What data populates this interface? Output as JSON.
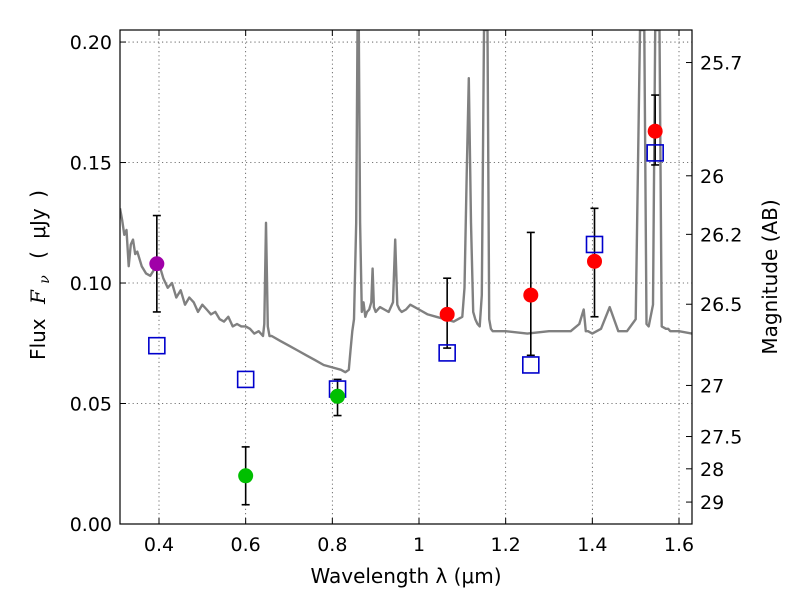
{
  "chart_data": {
    "type": "scatter",
    "xlabel": "Wavelength  λ (μm)",
    "ylabel_parts": [
      "Flux",
      "F",
      "ν",
      "(",
      "μJy",
      ")"
    ],
    "ylabel_right": "Magnitude (AB)",
    "xlim": [
      0.31,
      1.63
    ],
    "ylim": [
      0.0,
      0.205
    ],
    "x_ticks": [
      0.4,
      0.6,
      0.8,
      1.0,
      1.2,
      1.4,
      1.6
    ],
    "x_tick_labels": [
      "0.4",
      "0.6",
      "0.8",
      "1",
      "1.2",
      "1.4",
      "1.6"
    ],
    "y_ticks": [
      0.0,
      0.05,
      0.1,
      0.15,
      0.2
    ],
    "y_tick_labels": [
      "0.00",
      "0.05",
      "0.10",
      "0.15",
      "0.20"
    ],
    "right_ticks": [
      {
        "mag": "25.7",
        "flux": 0.1915
      },
      {
        "mag": "26",
        "flux": 0.1445
      },
      {
        "mag": "26.2",
        "flux": 0.1202
      },
      {
        "mag": "26.5",
        "flux": 0.0912
      },
      {
        "mag": "27",
        "flux": 0.0575
      },
      {
        "mag": "27.5",
        "flux": 0.0363
      },
      {
        "mag": "28",
        "flux": 0.0229
      },
      {
        "mag": "29",
        "flux": 0.0091
      }
    ],
    "grid": true,
    "observed_points": [
      {
        "x": 0.395,
        "y": 0.108,
        "yerr_low": 0.02,
        "yerr_high": 0.02,
        "color": "#a000a8"
      },
      {
        "x": 0.6,
        "y": 0.02,
        "yerr_low": 0.012,
        "yerr_high": 0.012,
        "color": "#00bf00"
      },
      {
        "x": 0.812,
        "y": 0.053,
        "yerr_low": 0.008,
        "yerr_high": 0.007,
        "color": "#00bf00"
      },
      {
        "x": 1.065,
        "y": 0.087,
        "yerr_low": 0.014,
        "yerr_high": 0.015,
        "color": "#ff0000"
      },
      {
        "x": 1.258,
        "y": 0.095,
        "yerr_low": 0.025,
        "yerr_high": 0.026,
        "color": "#ff0000"
      },
      {
        "x": 1.405,
        "y": 0.109,
        "yerr_low": 0.023,
        "yerr_high": 0.022,
        "color": "#ff0000"
      },
      {
        "x": 1.545,
        "y": 0.163,
        "yerr_low": 0.014,
        "yerr_high": 0.015,
        "color": "#ff0000"
      }
    ],
    "model_points": [
      {
        "x": 0.395,
        "y": 0.074
      },
      {
        "x": 0.6,
        "y": 0.06
      },
      {
        "x": 0.812,
        "y": 0.056
      },
      {
        "x": 1.065,
        "y": 0.071
      },
      {
        "x": 1.258,
        "y": 0.066
      },
      {
        "x": 1.405,
        "y": 0.116
      },
      {
        "x": 1.545,
        "y": 0.154
      }
    ],
    "model_color": "#0000cc",
    "spectrum": {
      "color": "#808080",
      "x": [
        0.31,
        0.315,
        0.32,
        0.325,
        0.33,
        0.335,
        0.34,
        0.345,
        0.35,
        0.36,
        0.37,
        0.38,
        0.39,
        0.4,
        0.41,
        0.42,
        0.43,
        0.44,
        0.45,
        0.46,
        0.47,
        0.48,
        0.49,
        0.5,
        0.51,
        0.52,
        0.53,
        0.54,
        0.55,
        0.56,
        0.57,
        0.58,
        0.59,
        0.6,
        0.61,
        0.62,
        0.63,
        0.64,
        0.643,
        0.647,
        0.651,
        0.655,
        0.66,
        0.68,
        0.7,
        0.72,
        0.74,
        0.76,
        0.78,
        0.8,
        0.82,
        0.83,
        0.838,
        0.842,
        0.846,
        0.85,
        0.855,
        0.858,
        0.861,
        0.864,
        0.868,
        0.872,
        0.876,
        0.88,
        0.885,
        0.89,
        0.893,
        0.896,
        0.9,
        0.91,
        0.92,
        0.93,
        0.94,
        0.945,
        0.95,
        0.955,
        0.96,
        0.97,
        0.98,
        1.0,
        1.02,
        1.04,
        1.06,
        1.08,
        1.09,
        1.1,
        1.105,
        1.11,
        1.115,
        1.12,
        1.125,
        1.13,
        1.135,
        1.14,
        1.145,
        1.15,
        1.152,
        1.155,
        1.158,
        1.162,
        1.166,
        1.17,
        1.2,
        1.25,
        1.3,
        1.35,
        1.37,
        1.38,
        1.385,
        1.39,
        1.4,
        1.42,
        1.44,
        1.46,
        1.48,
        1.5,
        1.51,
        1.52,
        1.525,
        1.53,
        1.54,
        1.545,
        1.55,
        1.555,
        1.56,
        1.57,
        1.575,
        1.58,
        1.6,
        1.63
      ],
      "y": [
        0.131,
        0.126,
        0.12,
        0.122,
        0.107,
        0.116,
        0.118,
        0.112,
        0.113,
        0.107,
        0.104,
        0.103,
        0.106,
        0.108,
        0.102,
        0.098,
        0.1,
        0.094,
        0.097,
        0.091,
        0.094,
        0.092,
        0.088,
        0.091,
        0.089,
        0.087,
        0.088,
        0.085,
        0.084,
        0.086,
        0.082,
        0.083,
        0.082,
        0.082,
        0.081,
        0.079,
        0.08,
        0.078,
        0.083,
        0.125,
        0.082,
        0.078,
        0.078,
        0.076,
        0.074,
        0.072,
        0.07,
        0.068,
        0.066,
        0.065,
        0.064,
        0.063,
        0.064,
        0.072,
        0.08,
        0.085,
        0.125,
        0.205,
        0.205,
        0.125,
        0.088,
        0.092,
        0.086,
        0.088,
        0.089,
        0.092,
        0.106,
        0.09,
        0.088,
        0.09,
        0.089,
        0.088,
        0.092,
        0.118,
        0.091,
        0.089,
        0.088,
        0.089,
        0.091,
        0.089,
        0.087,
        0.086,
        0.085,
        0.084,
        0.085,
        0.086,
        0.098,
        0.145,
        0.185,
        0.125,
        0.088,
        0.085,
        0.083,
        0.082,
        0.095,
        0.205,
        0.205,
        0.205,
        0.205,
        0.085,
        0.081,
        0.08,
        0.08,
        0.079,
        0.08,
        0.08,
        0.083,
        0.089,
        0.08,
        0.08,
        0.079,
        0.081,
        0.09,
        0.08,
        0.08,
        0.085,
        0.205,
        0.205,
        0.083,
        0.082,
        0.091,
        0.205,
        0.205,
        0.205,
        0.082,
        0.081,
        0.081,
        0.08,
        0.08,
        0.079
      ]
    }
  }
}
